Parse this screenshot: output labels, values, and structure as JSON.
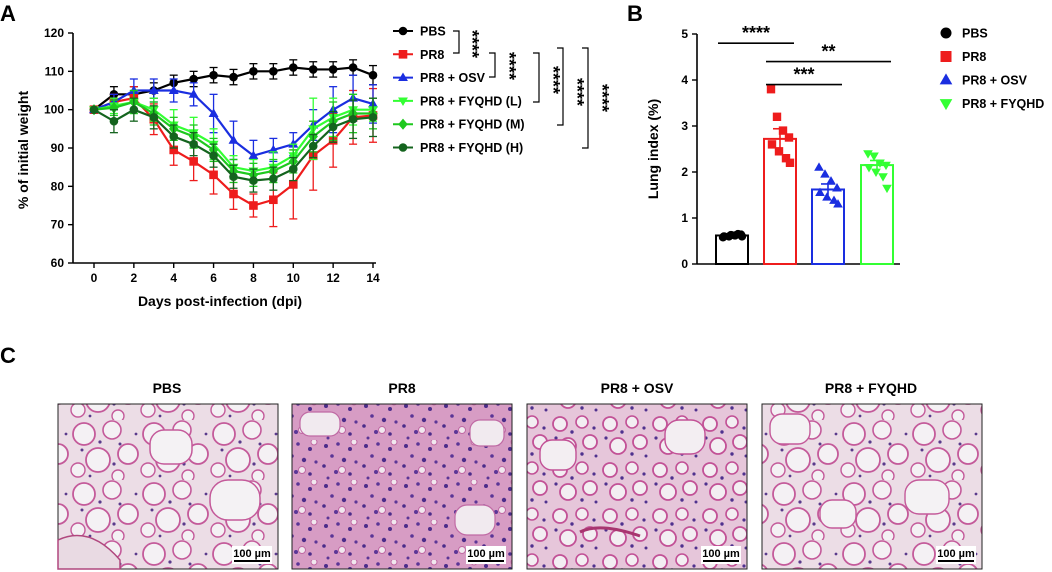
{
  "figure": {
    "panel_labels": [
      "A",
      "B",
      "C"
    ]
  },
  "chart_data": [
    {
      "type": "line",
      "panel": "A",
      "xlabel": "Days post-infection (dpi)",
      "ylabel": "% of initial weight",
      "xlim": [
        0,
        14
      ],
      "ylim": [
        60,
        120
      ],
      "xticks": [
        0,
        2,
        4,
        6,
        8,
        10,
        12,
        14
      ],
      "yticks": [
        60,
        70,
        80,
        90,
        100,
        110,
        120
      ],
      "x": [
        0,
        1,
        2,
        3,
        4,
        5,
        6,
        7,
        8,
        9,
        10,
        11,
        12,
        13,
        14
      ],
      "series": [
        {
          "name": "PBS",
          "color": "#000000",
          "marker": "circle",
          "values": [
            100,
            104,
            104,
            105,
            107,
            108,
            109,
            108.5,
            110,
            110,
            111,
            110.5,
            110.5,
            111,
            109
          ],
          "errors": [
            0,
            2,
            2,
            2,
            2,
            2,
            2,
            2,
            2,
            2,
            2,
            2,
            2,
            2,
            2.5
          ]
        },
        {
          "name": "PR8",
          "color": "#ee1c1c",
          "marker": "square",
          "values": [
            100,
            102,
            103,
            97.5,
            89.5,
            86.5,
            83,
            78,
            75,
            76.5,
            80.5,
            88,
            92,
            98,
            98.5
          ],
          "errors": [
            0,
            2,
            3,
            4,
            4,
            5,
            5,
            4,
            3,
            7,
            9,
            9,
            7,
            7,
            7
          ]
        },
        {
          "name": "PR8 + OSV",
          "color": "#1a2ee0",
          "marker": "triangle-up",
          "values": [
            100,
            102,
            105,
            105,
            105,
            104,
            99,
            92,
            88,
            89.5,
            91,
            96,
            100,
            103,
            101.5
          ],
          "errors": [
            0,
            2,
            3,
            3,
            3,
            3,
            5,
            5,
            4,
            3,
            3,
            4,
            6,
            6,
            5
          ]
        },
        {
          "name": "PR8 + FYQHD (L)",
          "color": "#33ff33",
          "marker": "triangle-down",
          "values": [
            100,
            101,
            102,
            100,
            96,
            94,
            91,
            85,
            84,
            85,
            88,
            95,
            98,
            100,
            100
          ],
          "errors": [
            0,
            2,
            3,
            3,
            4,
            4,
            4,
            3,
            3,
            4,
            3,
            8,
            5,
            4,
            3
          ]
        },
        {
          "name": "PR8 + FYQHD (M)",
          "color": "#1ec81e",
          "marker": "diamond",
          "values": [
            100,
            100.5,
            102,
            99,
            95,
            93,
            89.5,
            84,
            83,
            84,
            86.5,
            93,
            97,
            99,
            99
          ],
          "errors": [
            0,
            2,
            3,
            3,
            3,
            3,
            3,
            3,
            3,
            3,
            3,
            4,
            5,
            5,
            4
          ]
        },
        {
          "name": "PR8 + FYQHD (H)",
          "color": "#14641e",
          "marker": "circle",
          "values": [
            100,
            97,
            100,
            98,
            93,
            91,
            88,
            82.5,
            81.5,
            82,
            84.5,
            90.5,
            95.5,
            97.5,
            98
          ],
          "errors": [
            0,
            3,
            3,
            3,
            3,
            3,
            3,
            3,
            3,
            3,
            3,
            3,
            4,
            5,
            5
          ]
        }
      ],
      "significance": [
        "****",
        "****",
        "****",
        "****",
        "****"
      ]
    },
    {
      "type": "bar",
      "panel": "B",
      "ylabel": "Lung index (%)",
      "ylim": [
        0,
        5
      ],
      "yticks": [
        0,
        1,
        2,
        3,
        4,
        5
      ],
      "categories": [
        "PBS",
        "PR8",
        "PR8 + OSV",
        "PR8 + FYQHD"
      ],
      "colors": [
        "#000000",
        "#ee1c1c",
        "#1a2ee0",
        "#33ff33"
      ],
      "markers": [
        "circle",
        "square",
        "triangle-up",
        "triangle-down"
      ],
      "values": [
        0.62,
        2.72,
        1.62,
        2.15
      ],
      "errors": [
        0.03,
        0.22,
        0.12,
        0.1
      ],
      "points": [
        [
          0.58,
          0.6,
          0.62,
          0.64,
          0.6,
          0.63,
          0.65,
          0.6
        ],
        [
          3.8,
          3.2,
          2.9,
          2.75,
          2.6,
          2.45,
          2.3,
          2.2
        ],
        [
          2.1,
          1.95,
          1.8,
          1.65,
          1.55,
          1.45,
          1.38,
          1.3
        ],
        [
          2.4,
          2.35,
          2.2,
          2.15,
          2.1,
          2.0,
          1.9,
          1.65
        ]
      ],
      "significance": [
        {
          "label": "****",
          "from": 0,
          "to": 1,
          "y": 4.8
        },
        {
          "label": "**",
          "from": 1,
          "to": 3,
          "y": 4.4
        },
        {
          "label": "***",
          "from": 1,
          "to": 2,
          "y": 3.9
        }
      ]
    }
  ],
  "micrographs": {
    "panel": "C",
    "images": [
      {
        "title": "PBS",
        "scale_bar": "100 µm"
      },
      {
        "title": "PR8",
        "scale_bar": "100 µm"
      },
      {
        "title": "PR8 + OSV",
        "scale_bar": "100 µm"
      },
      {
        "title": "PR8 + FYQHD",
        "scale_bar": "100 µm"
      }
    ]
  }
}
